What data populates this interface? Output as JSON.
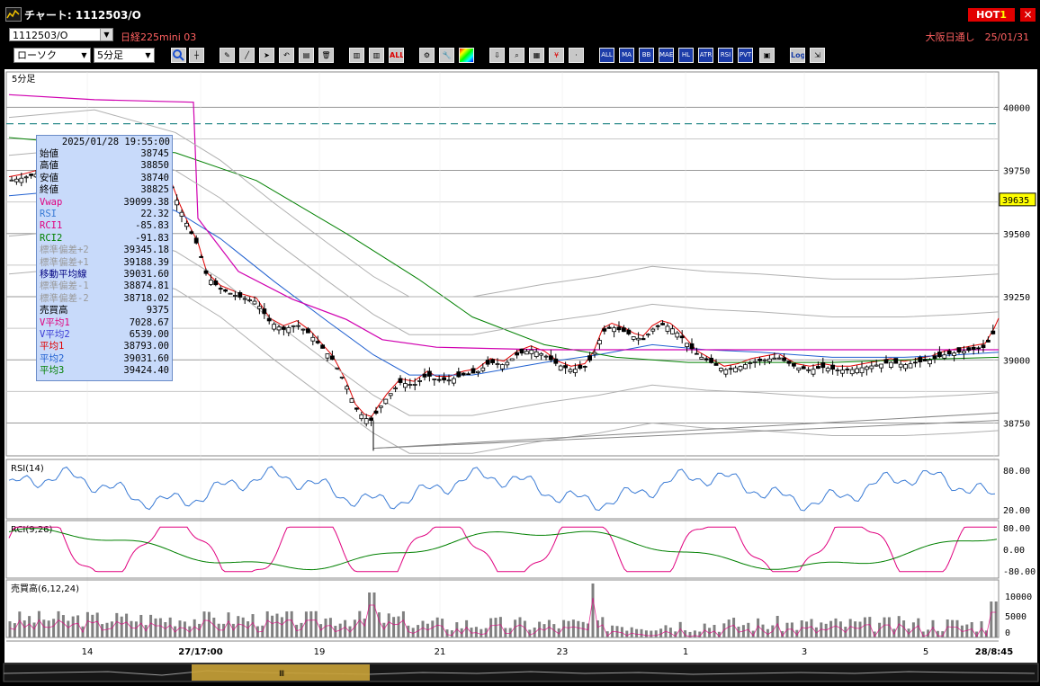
{
  "window": {
    "title": "チャート: 1112503/O",
    "hot_label": "HOT",
    "hot_num": "1",
    "close": "×"
  },
  "toolbar": {
    "symbol": "1112503/O",
    "instrument": "日経225mini 03",
    "market_info": "大阪日通し　25/01/31",
    "chart_type": "ローソク",
    "timeframe": "5分足",
    "text_buttons": [
      "ALL",
      "MA",
      "BB",
      "MAE",
      "HL",
      "ATR",
      "RSI",
      "PVT",
      "Log"
    ]
  },
  "info_panel": {
    "timestamp": "2025/01/28  19:55:00",
    "rows": [
      {
        "label": "始値",
        "value": "38745",
        "color": "#000000"
      },
      {
        "label": "高値",
        "value": "38850",
        "color": "#000000"
      },
      {
        "label": "安値",
        "value": "38740",
        "color": "#000000"
      },
      {
        "label": "終値",
        "value": "38825",
        "color": "#000000"
      },
      {
        "label": "Vwap",
        "value": "39099.38",
        "color": "#e0007f"
      },
      {
        "label": "RSI",
        "value": "22.32",
        "color": "#3a7bd5"
      },
      {
        "label": "RCI1",
        "value": "-85.83",
        "color": "#e0007f"
      },
      {
        "label": "RCI2",
        "value": "-91.83",
        "color": "#008000"
      },
      {
        "label": "標準偏差+2",
        "value": "39345.18",
        "color": "#9a9a9a"
      },
      {
        "label": "標準偏差+1",
        "value": "39188.39",
        "color": "#9a9a9a"
      },
      {
        "label": "移動平均線",
        "value": "39031.60",
        "color": "#000080"
      },
      {
        "label": "標準偏差-1",
        "value": "38874.81",
        "color": "#9a9a9a"
      },
      {
        "label": "標準偏差-2",
        "value": "38718.02",
        "color": "#9a9a9a"
      },
      {
        "label": "売買高",
        "value": "9375",
        "color": "#000000"
      },
      {
        "label": "V平均1",
        "value": "7028.67",
        "color": "#e0007f"
      },
      {
        "label": "V平均2",
        "value": "6539.00",
        "color": "#3a3ad5"
      },
      {
        "label": "平均1",
        "value": "38793.00",
        "color": "#e00000"
      },
      {
        "label": "平均2",
        "value": "39031.60",
        "color": "#2060d0"
      },
      {
        "label": "平均3",
        "value": "39424.40",
        "color": "#008000"
      }
    ]
  },
  "main_chart": {
    "tag": "5分足",
    "y_ticks": [
      40000,
      39750,
      39500,
      39250,
      39000,
      38750
    ],
    "last_price": "39635",
    "ylim": [
      38620,
      40140
    ]
  },
  "rsi_panel": {
    "label": "RSI(14)",
    "ticks": [
      "80.00",
      "20.00"
    ]
  },
  "rci_panel": {
    "label": "RCI(9,26)",
    "ticks": [
      "80.00",
      "0.00",
      "-80.00"
    ]
  },
  "vol_panel": {
    "label": "売買高(6,12,24)",
    "ticks": [
      "10000",
      "5000",
      "0"
    ]
  },
  "x_axis": {
    "labels": [
      "14",
      "27/17:00",
      "19",
      "21",
      "23",
      "1",
      "3",
      "5",
      "28/8:45"
    ]
  }
}
